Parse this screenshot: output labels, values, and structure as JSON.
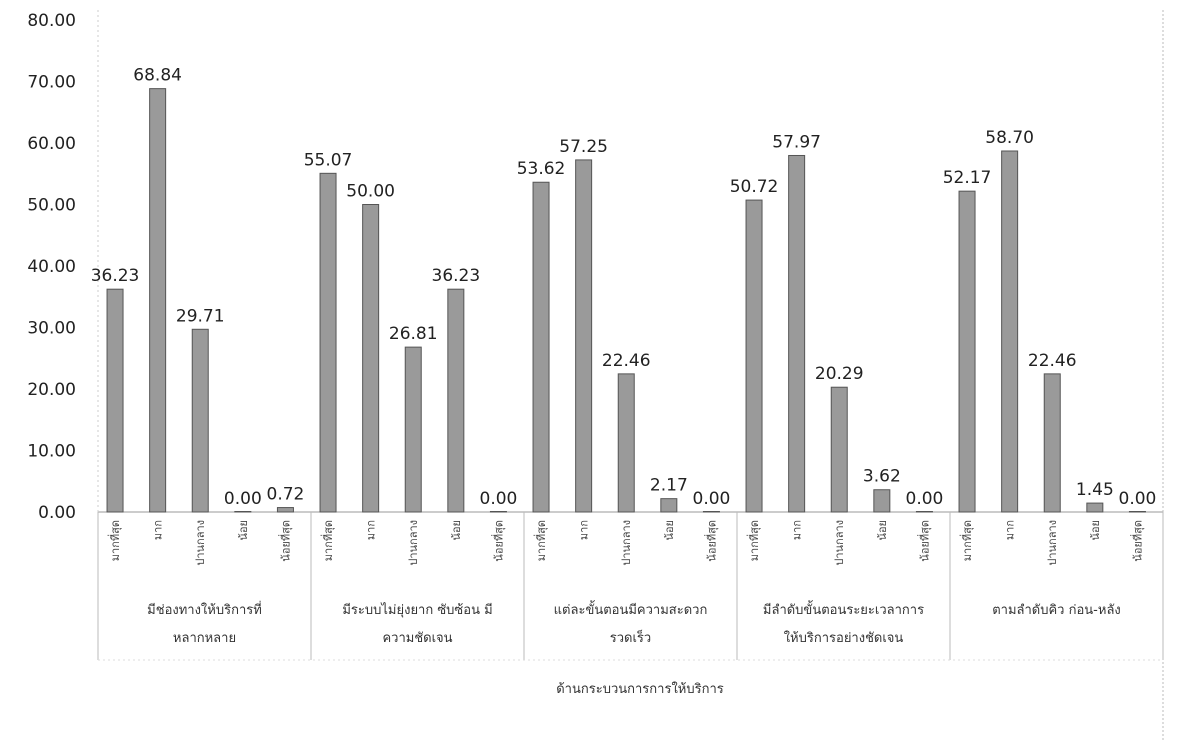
{
  "chart_data": {
    "type": "bar",
    "title": "",
    "xlabel": "ด้านกระบวนการการให้บริการ",
    "ylabel": "",
    "ylim": [
      0,
      80
    ],
    "yticks": [
      "0.00",
      "10.00",
      "20.00",
      "30.00",
      "40.00",
      "50.00",
      "60.00",
      "70.00",
      "80.00"
    ],
    "bar_color": "#9a9a9a",
    "groups": [
      {
        "label_lines": [
          "มีช่องทางให้บริการที่",
          "หลากหลาย"
        ],
        "bars": [
          {
            "category": "มากที่สุด",
            "value": 36.23,
            "label": "36.23"
          },
          {
            "category": "มาก",
            "value": 68.84,
            "label": "68.84"
          },
          {
            "category": "ปานกลาง",
            "value": 29.71,
            "label": "29.71"
          },
          {
            "category": "น้อย",
            "value": 0.0,
            "label": "0.00"
          },
          {
            "category": "น้อยที่สุด",
            "value": 0.72,
            "label": "0.72"
          }
        ]
      },
      {
        "label_lines": [
          "มีระบบไม่ยุ่งยาก ซับซ้อน มี",
          "ความชัดเจน"
        ],
        "bars": [
          {
            "category": "มากที่สุด",
            "value": 55.07,
            "label": "55.07"
          },
          {
            "category": "มาก",
            "value": 50.0,
            "label": "50.00"
          },
          {
            "category": "ปานกลาง",
            "value": 26.81,
            "label": "26.81"
          },
          {
            "category": "น้อย",
            "value": 36.23,
            "label": "36.23"
          },
          {
            "category": "น้อยที่สุด",
            "value": 0.0,
            "label": "0.00"
          }
        ]
      },
      {
        "label_lines": [
          "แต่ละขั้นตอนมีความสะดวก",
          "รวดเร็ว"
        ],
        "bars": [
          {
            "category": "มากที่สุด",
            "value": 53.62,
            "label": "53.62"
          },
          {
            "category": "มาก",
            "value": 57.25,
            "label": "57.25"
          },
          {
            "category": "ปานกลาง",
            "value": 22.46,
            "label": "22.46"
          },
          {
            "category": "น้อย",
            "value": 2.17,
            "label": "2.17"
          },
          {
            "category": "น้อยที่สุด",
            "value": 0.0,
            "label": "0.00"
          }
        ]
      },
      {
        "label_lines": [
          "มีลำดับขั้นตอนระยะเวลาการ",
          "ให้บริการอย่างชัดเจน"
        ],
        "bars": [
          {
            "category": "มากที่สุด",
            "value": 50.72,
            "label": "50.72"
          },
          {
            "category": "มาก",
            "value": 57.97,
            "label": "57.97"
          },
          {
            "category": "ปานกลาง",
            "value": 20.29,
            "label": "20.29"
          },
          {
            "category": "น้อย",
            "value": 3.62,
            "label": "3.62"
          },
          {
            "category": "น้อยที่สุด",
            "value": 0.0,
            "label": "0.00"
          }
        ]
      },
      {
        "label_lines": [
          "ตามลำดับคิว ก่อน-หลัง"
        ],
        "bars": [
          {
            "category": "มากที่สุด",
            "value": 52.17,
            "label": "52.17"
          },
          {
            "category": "มาก",
            "value": 58.7,
            "label": "58.70"
          },
          {
            "category": "ปานกลาง",
            "value": 22.46,
            "label": "22.46"
          },
          {
            "category": "น้อย",
            "value": 1.45,
            "label": "1.45"
          },
          {
            "category": "น้อยที่สุด",
            "value": 0.0,
            "label": "0.00"
          }
        ]
      }
    ],
    "grid": false,
    "legend": "none"
  }
}
